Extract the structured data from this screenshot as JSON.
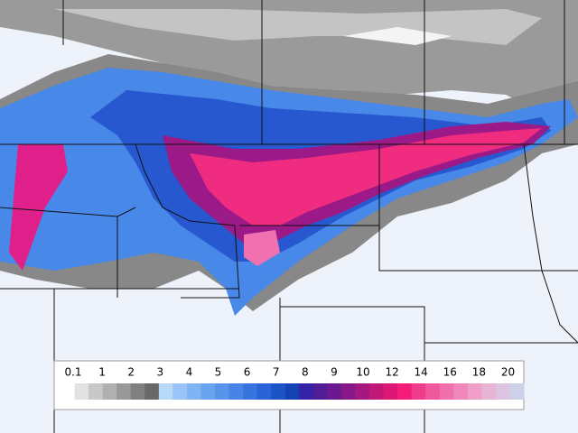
{
  "legend": {
    "ticks": [
      0.1,
      1,
      2,
      3,
      4,
      5,
      6,
      7,
      8,
      9,
      10,
      12,
      14,
      16,
      18,
      20
    ],
    "colors": [
      "#ffffff",
      "#e2e2e2",
      "#c8c8c8",
      "#b0b0b0",
      "#989898",
      "#808080",
      "#686868",
      "#b8d8f8",
      "#98c4f8",
      "#80b4f4",
      "#68a4f0",
      "#5894ec",
      "#4884e8",
      "#3874e0",
      "#2864d8",
      "#1c54c8",
      "#1444b4",
      "#3422a8",
      "#501c98",
      "#6c1890",
      "#881888",
      "#a41880",
      "#c01878",
      "#dc1874",
      "#f41c78",
      "#f03c8c",
      "#f0589c",
      "#f070ac",
      "#f088bc",
      "#f0a0c8",
      "#e8b4d4",
      "#dcc4e0",
      "#ccd0e8"
    ]
  }
}
